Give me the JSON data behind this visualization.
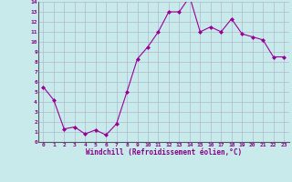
{
  "x": [
    0,
    1,
    2,
    3,
    4,
    5,
    6,
    7,
    8,
    9,
    10,
    11,
    12,
    13,
    14,
    15,
    16,
    17,
    18,
    19,
    20,
    21,
    22,
    23
  ],
  "y": [
    5.5,
    4.2,
    1.3,
    1.5,
    0.8,
    1.2,
    0.7,
    1.8,
    5.0,
    8.3,
    9.5,
    11.0,
    13.0,
    13.0,
    14.5,
    11.0,
    11.5,
    11.0,
    12.3,
    10.8,
    10.5,
    10.2,
    8.5,
    8.5
  ],
  "line_color": "#990099",
  "marker": "D",
  "marker_size": 2.0,
  "bg_color": "#c8eaea",
  "grid_color": "#b0b8cc",
  "xlabel": "Windchill (Refroidissement éolien,°C)",
  "xlabel_color": "#880088",
  "tick_color": "#880088",
  "axis_color": "#555566",
  "xlim": [
    -0.5,
    23.5
  ],
  "ylim": [
    0,
    14
  ],
  "yticks": [
    0,
    1,
    2,
    3,
    4,
    5,
    6,
    7,
    8,
    9,
    10,
    11,
    12,
    13,
    14
  ],
  "xticks": [
    0,
    1,
    2,
    3,
    4,
    5,
    6,
    7,
    8,
    9,
    10,
    11,
    12,
    13,
    14,
    15,
    16,
    17,
    18,
    19,
    20,
    21,
    22,
    23
  ],
  "xtick_labels": [
    "0",
    "1",
    "2",
    "3",
    "4",
    "5",
    "6",
    "7",
    "8",
    "9",
    "10",
    "11",
    "12",
    "13",
    "14",
    "15",
    "16",
    "17",
    "18",
    "19",
    "20",
    "21",
    "22",
    "23"
  ],
  "ytick_labels": [
    "0",
    "1",
    "2",
    "3",
    "4",
    "5",
    "6",
    "7",
    "8",
    "9",
    "10",
    "11",
    "12",
    "13",
    "14"
  ]
}
